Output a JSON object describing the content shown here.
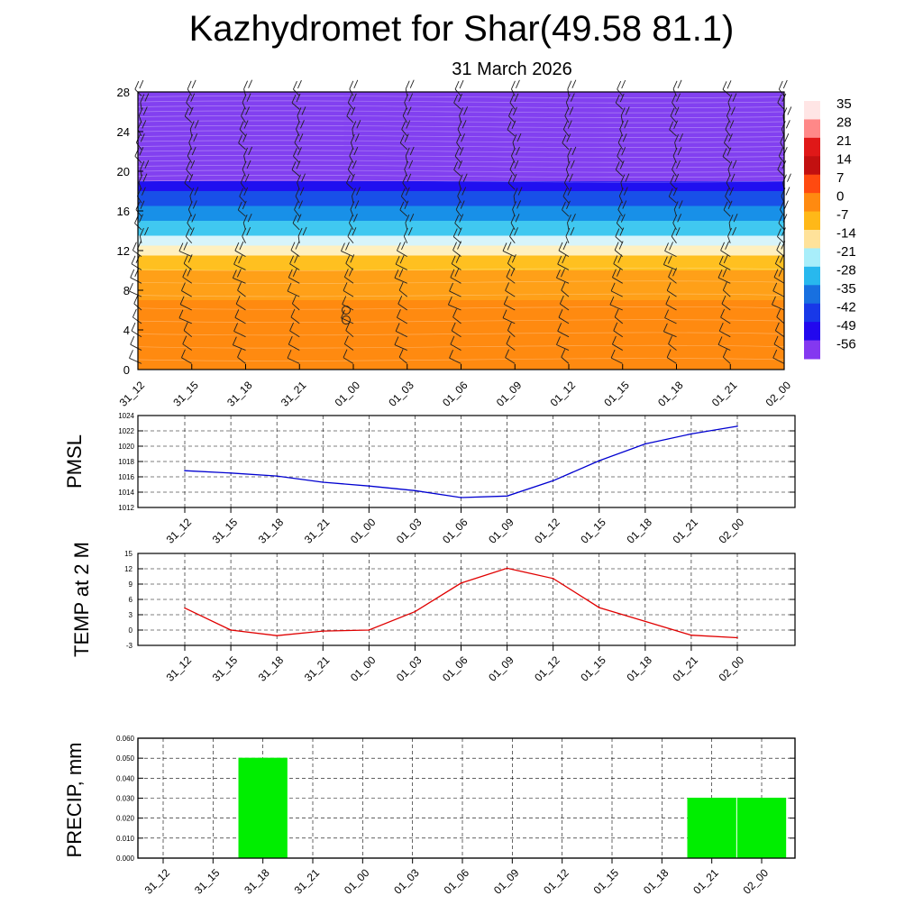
{
  "title": "Kazhydromet for Shar(49.58 81.1)",
  "subtitle": "31 March 2026",
  "chart_data": [
    {
      "type": "heatmap",
      "name": "cross-section",
      "xlabel": "",
      "ylabel": "",
      "categories": [
        "31_12",
        "31_15",
        "31_18",
        "31_21",
        "01_00",
        "01_03",
        "01_06",
        "01_09",
        "01_12",
        "01_15",
        "01_18",
        "01_21",
        "02_00"
      ],
      "y_ticks": [
        0,
        4,
        8,
        12,
        16,
        20,
        24,
        28
      ],
      "ylim": [
        0,
        28
      ],
      "colorbar": {
        "labels": [
          "35",
          "28",
          "21",
          "14",
          "7",
          "0",
          "-7",
          "-14",
          "-21",
          "-28",
          "-35",
          "-42",
          "-49",
          "-56"
        ],
        "colors": [
          "#ffe5e5",
          "#ff8888",
          "#e01818",
          "#c21010",
          "#ff4a10",
          "#ff8a10",
          "#ffb818",
          "#ffe29a",
          "#a8eefa",
          "#28b8ee",
          "#1870e0",
          "#1838e8",
          "#2208ee",
          "#8438f0"
        ]
      },
      "bands": [
        {
          "from": 0,
          "to": 2,
          "color": "#ff8a10"
        },
        {
          "from": 2,
          "to": 7,
          "color": "#ff8a10"
        },
        {
          "from": 7,
          "to": 10,
          "color": "#ffa018"
        },
        {
          "from": 10,
          "to": 11.5,
          "color": "#ffc020"
        },
        {
          "from": 11.5,
          "to": 12.5,
          "color": "#fff0c0"
        },
        {
          "from": 12.5,
          "to": 13.5,
          "color": "#d8f4fa"
        },
        {
          "from": 13.5,
          "to": 15,
          "color": "#40c8f0"
        },
        {
          "from": 15,
          "to": 16.5,
          "color": "#1890e8"
        },
        {
          "from": 16.5,
          "to": 18,
          "color": "#1850e8"
        },
        {
          "from": 18,
          "to": 19,
          "color": "#2010f0"
        },
        {
          "from": 19,
          "to": 28,
          "color": "#8240f0"
        }
      ]
    },
    {
      "type": "line",
      "name": "pmsl",
      "ylabel": "PMSL",
      "categories": [
        "31_12",
        "31_15",
        "31_18",
        "31_21",
        "01_00",
        "01_03",
        "01_06",
        "01_09",
        "01_12",
        "01_15",
        "01_18",
        "01_21",
        "02_00"
      ],
      "values": [
        1016.8,
        1016.5,
        1016.1,
        1015.3,
        1014.8,
        1014.2,
        1013.3,
        1013.5,
        1015.5,
        1018.1,
        1020.3,
        1021.6,
        1022.6
      ],
      "ylim": [
        1012,
        1024
      ],
      "y_ticks": [
        1012,
        1014,
        1016,
        1018,
        1020,
        1022,
        1024
      ],
      "color": "#0000d0"
    },
    {
      "type": "line",
      "name": "temp",
      "ylabel": "TEMP at 2 M",
      "categories": [
        "31_12",
        "31_15",
        "31_18",
        "31_21",
        "01_00",
        "01_03",
        "01_06",
        "01_09",
        "01_12",
        "01_15",
        "01_18",
        "01_21",
        "02_00"
      ],
      "values": [
        4.3,
        0,
        -1.1,
        -0.2,
        0,
        3.6,
        9.2,
        12.1,
        10.1,
        4.4,
        1.7,
        -1,
        -1.5
      ],
      "ylim": [
        -3,
        15
      ],
      "y_ticks": [
        -3,
        0,
        3,
        6,
        9,
        12,
        15
      ],
      "color": "#e00000"
    },
    {
      "type": "bar",
      "name": "precip",
      "ylabel": "PRECIP, mm",
      "categories": [
        "31_12",
        "31_15",
        "31_18",
        "31_21",
        "01_00",
        "01_03",
        "01_06",
        "01_09",
        "01_12",
        "01_15",
        "01_18",
        "01_21",
        "02_00"
      ],
      "values": [
        0,
        0,
        0.05,
        0,
        0,
        0,
        0,
        0,
        0,
        0,
        0,
        0.03,
        0.03
      ],
      "ylim": [
        0,
        0.06
      ],
      "y_ticks": [
        "0.000",
        "0.010",
        "0.020",
        "0.030",
        "0.040",
        "0.050",
        "0.060"
      ],
      "color": "#00ee00"
    }
  ]
}
